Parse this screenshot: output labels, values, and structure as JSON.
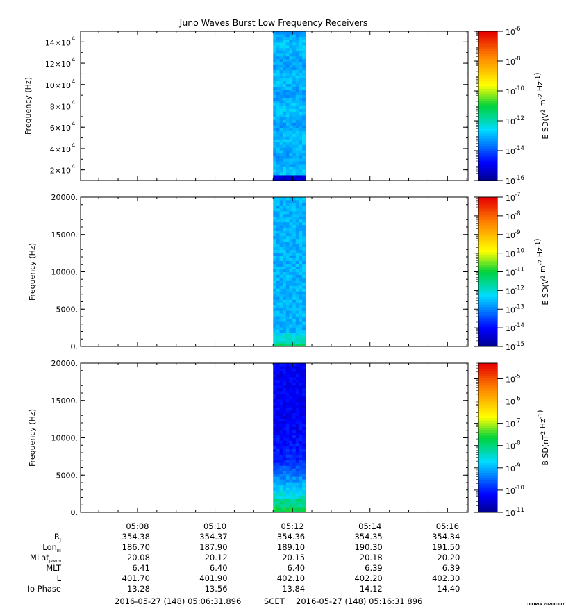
{
  "title": "Juno Waves Burst Low Frequency Receivers",
  "chart_data": [
    {
      "type": "heatmap",
      "ylabel": "Frequency (Hz)",
      "ylim": [
        10000,
        150000
      ],
      "yticks": [
        {
          "v": 20000,
          "m": "2",
          "e": "4"
        },
        {
          "v": 40000,
          "m": "4",
          "e": "4"
        },
        {
          "v": 60000,
          "m": "6",
          "e": "4"
        },
        {
          "v": 80000,
          "m": "8",
          "e": "4"
        },
        {
          "v": 100000,
          "m": "10",
          "e": "4"
        },
        {
          "v": 120000,
          "m": "12",
          "e": "4"
        },
        {
          "v": 140000,
          "m": "14",
          "e": "4"
        }
      ],
      "data_time_range": [
        "05:11:30",
        "05:12:20"
      ],
      "colorbar": {
        "label_main": "E SD(V",
        "label_sup1": "2",
        "label_mid": " m",
        "label_sup2": "-2",
        "label_end": " Hz",
        "label_sup3": "-1",
        "label_close": ")",
        "log_min": -16,
        "log_max": -6,
        "ticks": [
          {
            "exp": "-16",
            "lv": -16
          },
          {
            "exp": "-14",
            "lv": -14
          },
          {
            "exp": "-12",
            "lv": -12
          },
          {
            "exp": "-10",
            "lv": -10
          },
          {
            "exp": "-8",
            "lv": -8
          },
          {
            "exp": "-6",
            "lv": -6
          }
        ]
      }
    },
    {
      "type": "heatmap",
      "ylabel": "Frequency (Hz)",
      "ylim": [
        0,
        20000
      ],
      "yticks": [
        {
          "v": 0,
          "label": "0."
        },
        {
          "v": 5000,
          "label": "5000."
        },
        {
          "v": 10000,
          "label": "10000."
        },
        {
          "v": 15000,
          "label": "15000."
        },
        {
          "v": 20000,
          "label": "20000."
        }
      ],
      "data_time_range": [
        "05:11:30",
        "05:12:20"
      ],
      "colorbar": {
        "label_main": "E SD(V",
        "label_sup1": "2",
        "label_mid": " m",
        "label_sup2": "-2",
        "label_end": " Hz",
        "label_sup3": "-1",
        "label_close": ")",
        "log_min": -15,
        "log_max": -7,
        "ticks": [
          {
            "exp": "-15",
            "lv": -15
          },
          {
            "exp": "-14",
            "lv": -14
          },
          {
            "exp": "-13",
            "lv": -13
          },
          {
            "exp": "-12",
            "lv": -12
          },
          {
            "exp": "-11",
            "lv": -11
          },
          {
            "exp": "-10",
            "lv": -10
          },
          {
            "exp": "-9",
            "lv": -9
          },
          {
            "exp": "-8",
            "lv": -8
          },
          {
            "exp": "-7",
            "lv": -7
          }
        ]
      }
    },
    {
      "type": "heatmap",
      "ylabel": "Frequency (Hz)",
      "ylim": [
        0,
        20000
      ],
      "yticks": [
        {
          "v": 0,
          "label": "0."
        },
        {
          "v": 5000,
          "label": "5000."
        },
        {
          "v": 10000,
          "label": "10000."
        },
        {
          "v": 15000,
          "label": "15000."
        },
        {
          "v": 20000,
          "label": "20000."
        }
      ],
      "data_time_range": [
        "05:11:30",
        "05:12:20"
      ],
      "colorbar": {
        "label_main": "B SD(nT",
        "label_sup1": "2",
        "label_mid": "",
        "label_sup2": "",
        "label_end": " Hz",
        "label_sup3": "-1",
        "label_close": ")",
        "log_min": -11,
        "log_max": -4.3,
        "ticks": [
          {
            "exp": "-11",
            "lv": -11
          },
          {
            "exp": "-10",
            "lv": -10
          },
          {
            "exp": "-9",
            "lv": -9
          },
          {
            "exp": "-8",
            "lv": -8
          },
          {
            "exp": "-7",
            "lv": -7
          },
          {
            "exp": "-6",
            "lv": -6
          },
          {
            "exp": "-5",
            "lv": -5
          }
        ]
      }
    }
  ],
  "x_axis": {
    "range": [
      "05:06:31.896",
      "05:16:31.896"
    ],
    "ticks": [
      {
        "t": "05:08:00",
        "label": "05:08"
      },
      {
        "t": "05:10:00",
        "label": "05:10"
      },
      {
        "t": "05:12:00",
        "label": "05:12"
      },
      {
        "t": "05:14:00",
        "label": "05:14"
      },
      {
        "t": "05:16:00",
        "label": "05:16"
      }
    ]
  },
  "ephemeris": [
    {
      "label": "R",
      "sub": "J",
      "values": [
        "354.38",
        "354.37",
        "354.36",
        "354.35",
        "354.34"
      ]
    },
    {
      "label": "Lon",
      "sub": "III",
      "values": [
        "186.70",
        "187.90",
        "189.10",
        "190.30",
        "191.50"
      ]
    },
    {
      "label": "MLat",
      "sub": "JRM09",
      "values": [
        "20.08",
        "20.12",
        "20.15",
        "20.18",
        "20.20"
      ]
    },
    {
      "label": "MLT",
      "sub": "",
      "values": [
        "6.41",
        "6.40",
        "6.40",
        "6.39",
        "6.39"
      ]
    },
    {
      "label": "L",
      "sub": "",
      "values": [
        "401.70",
        "401.90",
        "402.10",
        "402.20",
        "402.30"
      ]
    },
    {
      "label": "Io Phase",
      "sub": "",
      "values": [
        "13.28",
        "13.56",
        "13.84",
        "14.12",
        "14.40"
      ]
    }
  ],
  "footer": {
    "start": "2016-05-27 (148) 05:06:31.896",
    "scet": "SCET",
    "end": "2016-05-27 (148) 05:16:31.896"
  },
  "stamp": "UIOWA 20200307"
}
